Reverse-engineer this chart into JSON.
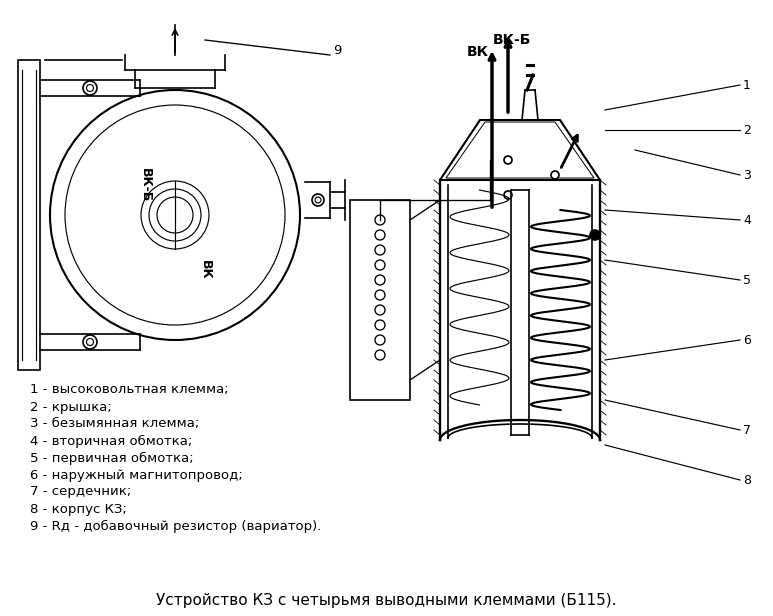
{
  "title": "Устройство КЗ с четырьмя выводными клеммами (Б115).",
  "title_fontsize": 11,
  "bg_color": "#ffffff",
  "legend_items": [
    "1 - высоковольтная клемма;",
    "2 - крышка;",
    "3 - безымянная клемма;",
    "4 - вторичная обмотка;",
    "5 - первичная обмотка;",
    "6 - наружный магнитопровод;",
    "7 - сердечник;",
    "8 - корпус КЗ;",
    "9 - Rд - добавочный резистор (вариатор)."
  ],
  "legend_fontsize": 9.5,
  "label_vk_b": "ВК-Б",
  "label_vk": "ВК",
  "line_color": "#000000",
  "label_fontsize": 10
}
